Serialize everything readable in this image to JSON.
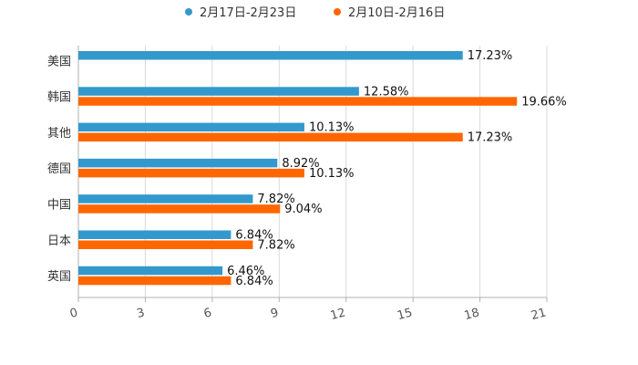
{
  "chart_data": {
    "type": "bar",
    "orientation": "horizontal",
    "categories": [
      "美国",
      "韩国",
      "其他",
      "德国",
      "中国",
      "日本",
      "英国"
    ],
    "series": [
      {
        "name": "2月17日-2月23日",
        "color": "#3399cc",
        "values": [
          17.23,
          12.58,
          10.13,
          8.92,
          7.82,
          6.84,
          6.46
        ],
        "labels": [
          "17.23%",
          "12.58%",
          "10.13%",
          "8.92%",
          "7.82%",
          "6.84%",
          "6.46%"
        ]
      },
      {
        "name": "2月10日-2月16日",
        "color": "#ff6600",
        "values": [
          null,
          19.66,
          17.23,
          10.13,
          9.04,
          7.82,
          6.84
        ],
        "labels": [
          null,
          "19.66%",
          "17.23%",
          "10.13%",
          "9.04%",
          "7.82%",
          "6.84%"
        ]
      }
    ],
    "xlim": [
      0,
      21
    ],
    "xticks": [
      0,
      3,
      6,
      9,
      12,
      15,
      18,
      21
    ],
    "grid": true,
    "legend_position": "top-center"
  }
}
